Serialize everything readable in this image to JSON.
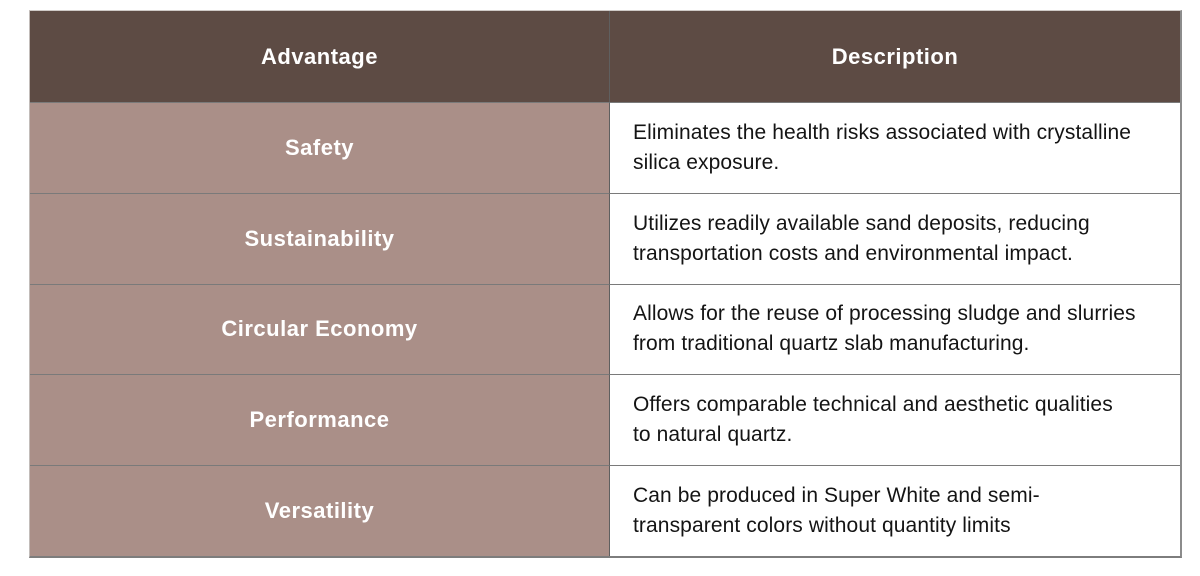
{
  "colors": {
    "header_bg": "#5d4b44",
    "header_text": "#ffffff",
    "advantage_bg": "#aa8f88",
    "advantage_text": "#ffffff",
    "description_bg": "#ffffff",
    "description_text": "#141414",
    "grid_line": "#7a7a7a"
  },
  "table": {
    "columns": [
      {
        "label": "Advantage"
      },
      {
        "label": "Description"
      }
    ],
    "rows": [
      {
        "advantage": "Safety",
        "description": "Eliminates the health risks associated with crystalline silica exposure."
      },
      {
        "advantage": "Sustainability",
        "description": "Utilizes readily available sand deposits, reducing transportation costs and environmental impact."
      },
      {
        "advantage": "Circular Economy",
        "description": "Allows for the reuse of processing sludge and slurries from traditional quartz slab manufacturing."
      },
      {
        "advantage": "Performance",
        "description": "Offers comparable technical and aesthetic qualities to natural quartz."
      },
      {
        "advantage": "Versatility",
        "description": "Can be produced in Super White and semi-transparent colors without quantity limits"
      }
    ]
  }
}
